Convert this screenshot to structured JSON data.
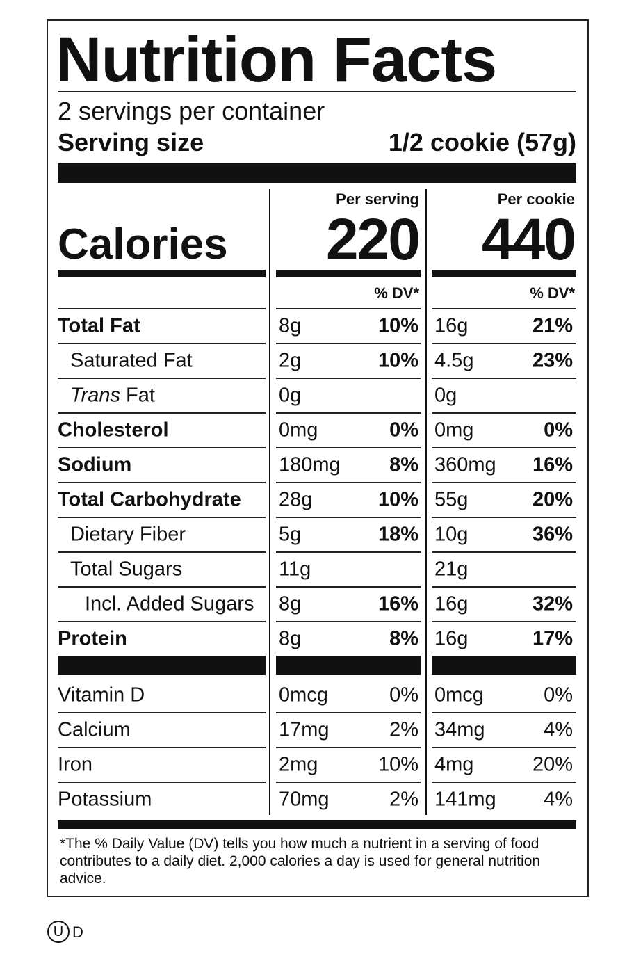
{
  "title": "Nutrition Facts",
  "servings": "2 servings per container",
  "serving_size": {
    "label": "Serving size",
    "value": "1/2 cookie (57g)"
  },
  "calories": {
    "label": "Calories",
    "columns": [
      {
        "header": "Per serving",
        "value": "220",
        "dv_header": "% DV*"
      },
      {
        "header": "Per cookie",
        "value": "440",
        "dv_header": "% DV*"
      }
    ]
  },
  "nutrients": [
    {
      "name": "Total Fat",
      "per_serving": {
        "amount": "8g",
        "dv": "10%"
      },
      "per_cookie": {
        "amount": "16g",
        "dv": "21%"
      }
    },
    {
      "name": "Saturated Fat",
      "per_serving": {
        "amount": "2g",
        "dv": "10%"
      },
      "per_cookie": {
        "amount": "4.5g",
        "dv": "23%"
      }
    },
    {
      "name_prefix": "Trans",
      "name": "Fat",
      "per_serving": {
        "amount": "0g"
      },
      "per_cookie": {
        "amount": "0g"
      }
    },
    {
      "name": "Cholesterol",
      "per_serving": {
        "amount": "0mg",
        "dv": "0%"
      },
      "per_cookie": {
        "amount": "0mg",
        "dv": "0%"
      }
    },
    {
      "name": "Sodium",
      "per_serving": {
        "amount": "180mg",
        "dv": "8%"
      },
      "per_cookie": {
        "amount": "360mg",
        "dv": "16%"
      }
    },
    {
      "name": "Total Carbohydrate",
      "per_serving": {
        "amount": "28g",
        "dv": "10%"
      },
      "per_cookie": {
        "amount": "55g",
        "dv": "20%"
      }
    },
    {
      "name": "Dietary Fiber",
      "per_serving": {
        "amount": "5g",
        "dv": "18%"
      },
      "per_cookie": {
        "amount": "10g",
        "dv": "36%"
      }
    },
    {
      "name": "Total Sugars",
      "per_serving": {
        "amount": "11g"
      },
      "per_cookie": {
        "amount": "21g"
      }
    },
    {
      "name": "Incl. Added Sugars",
      "per_serving": {
        "amount": "8g",
        "dv": "16%"
      },
      "per_cookie": {
        "amount": "16g",
        "dv": "32%"
      }
    },
    {
      "name": "Protein",
      "per_serving": {
        "amount": "8g",
        "dv": "8%"
      },
      "per_cookie": {
        "amount": "16g",
        "dv": "17%"
      }
    }
  ],
  "vitamins": [
    {
      "name": "Vitamin D",
      "per_serving": {
        "amount": "0mcg",
        "dv": "0%"
      },
      "per_cookie": {
        "amount": "0mcg",
        "dv": "0%"
      }
    },
    {
      "name": "Calcium",
      "per_serving": {
        "amount": "17mg",
        "dv": "2%"
      },
      "per_cookie": {
        "amount": "34mg",
        "dv": "4%"
      }
    },
    {
      "name": "Iron",
      "per_serving": {
        "amount": "2mg",
        "dv": "10%"
      },
      "per_cookie": {
        "amount": "4mg",
        "dv": "20%"
      }
    },
    {
      "name": "Potassium",
      "per_serving": {
        "amount": "70mg",
        "dv": "2%"
      },
      "per_cookie": {
        "amount": "141mg",
        "dv": "4%"
      }
    }
  ],
  "footnote": "*The % Daily Value (DV) tells you how much a nutrient in a serving of food contributes to a daily diet. 2,000 calories a day is used for general nutrition advice.",
  "certification": {
    "symbol": "U",
    "mark": "D"
  }
}
